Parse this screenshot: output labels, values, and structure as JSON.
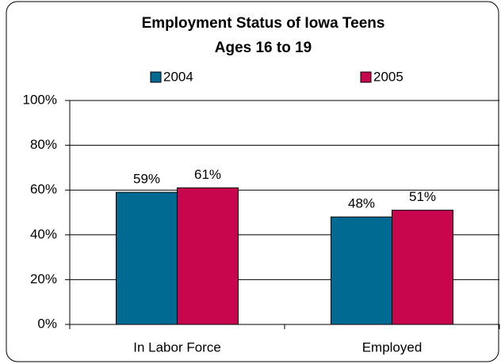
{
  "chart_data": {
    "type": "bar",
    "title": "Employment Status of Iowa Teens",
    "subtitle": "Ages 16 to 19",
    "categories": [
      "In Labor Force",
      "Employed"
    ],
    "series": [
      {
        "name": "2004",
        "color": "#006a93",
        "values": [
          59,
          48
        ],
        "value_labels": [
          "59%",
          "48%"
        ]
      },
      {
        "name": "2005",
        "color": "#c8064d",
        "values": [
          61,
          51
        ],
        "value_labels": [
          "61%",
          "51%"
        ]
      }
    ],
    "ylim": [
      0,
      100
    ],
    "yticks": [
      {
        "value": 0,
        "label": "0%"
      },
      {
        "value": 20,
        "label": "20%"
      },
      {
        "value": 40,
        "label": "40%"
      },
      {
        "value": 60,
        "label": "60%"
      },
      {
        "value": 80,
        "label": "80%"
      },
      {
        "value": 100,
        "label": "100%"
      }
    ],
    "grid": true,
    "legend": "top"
  }
}
